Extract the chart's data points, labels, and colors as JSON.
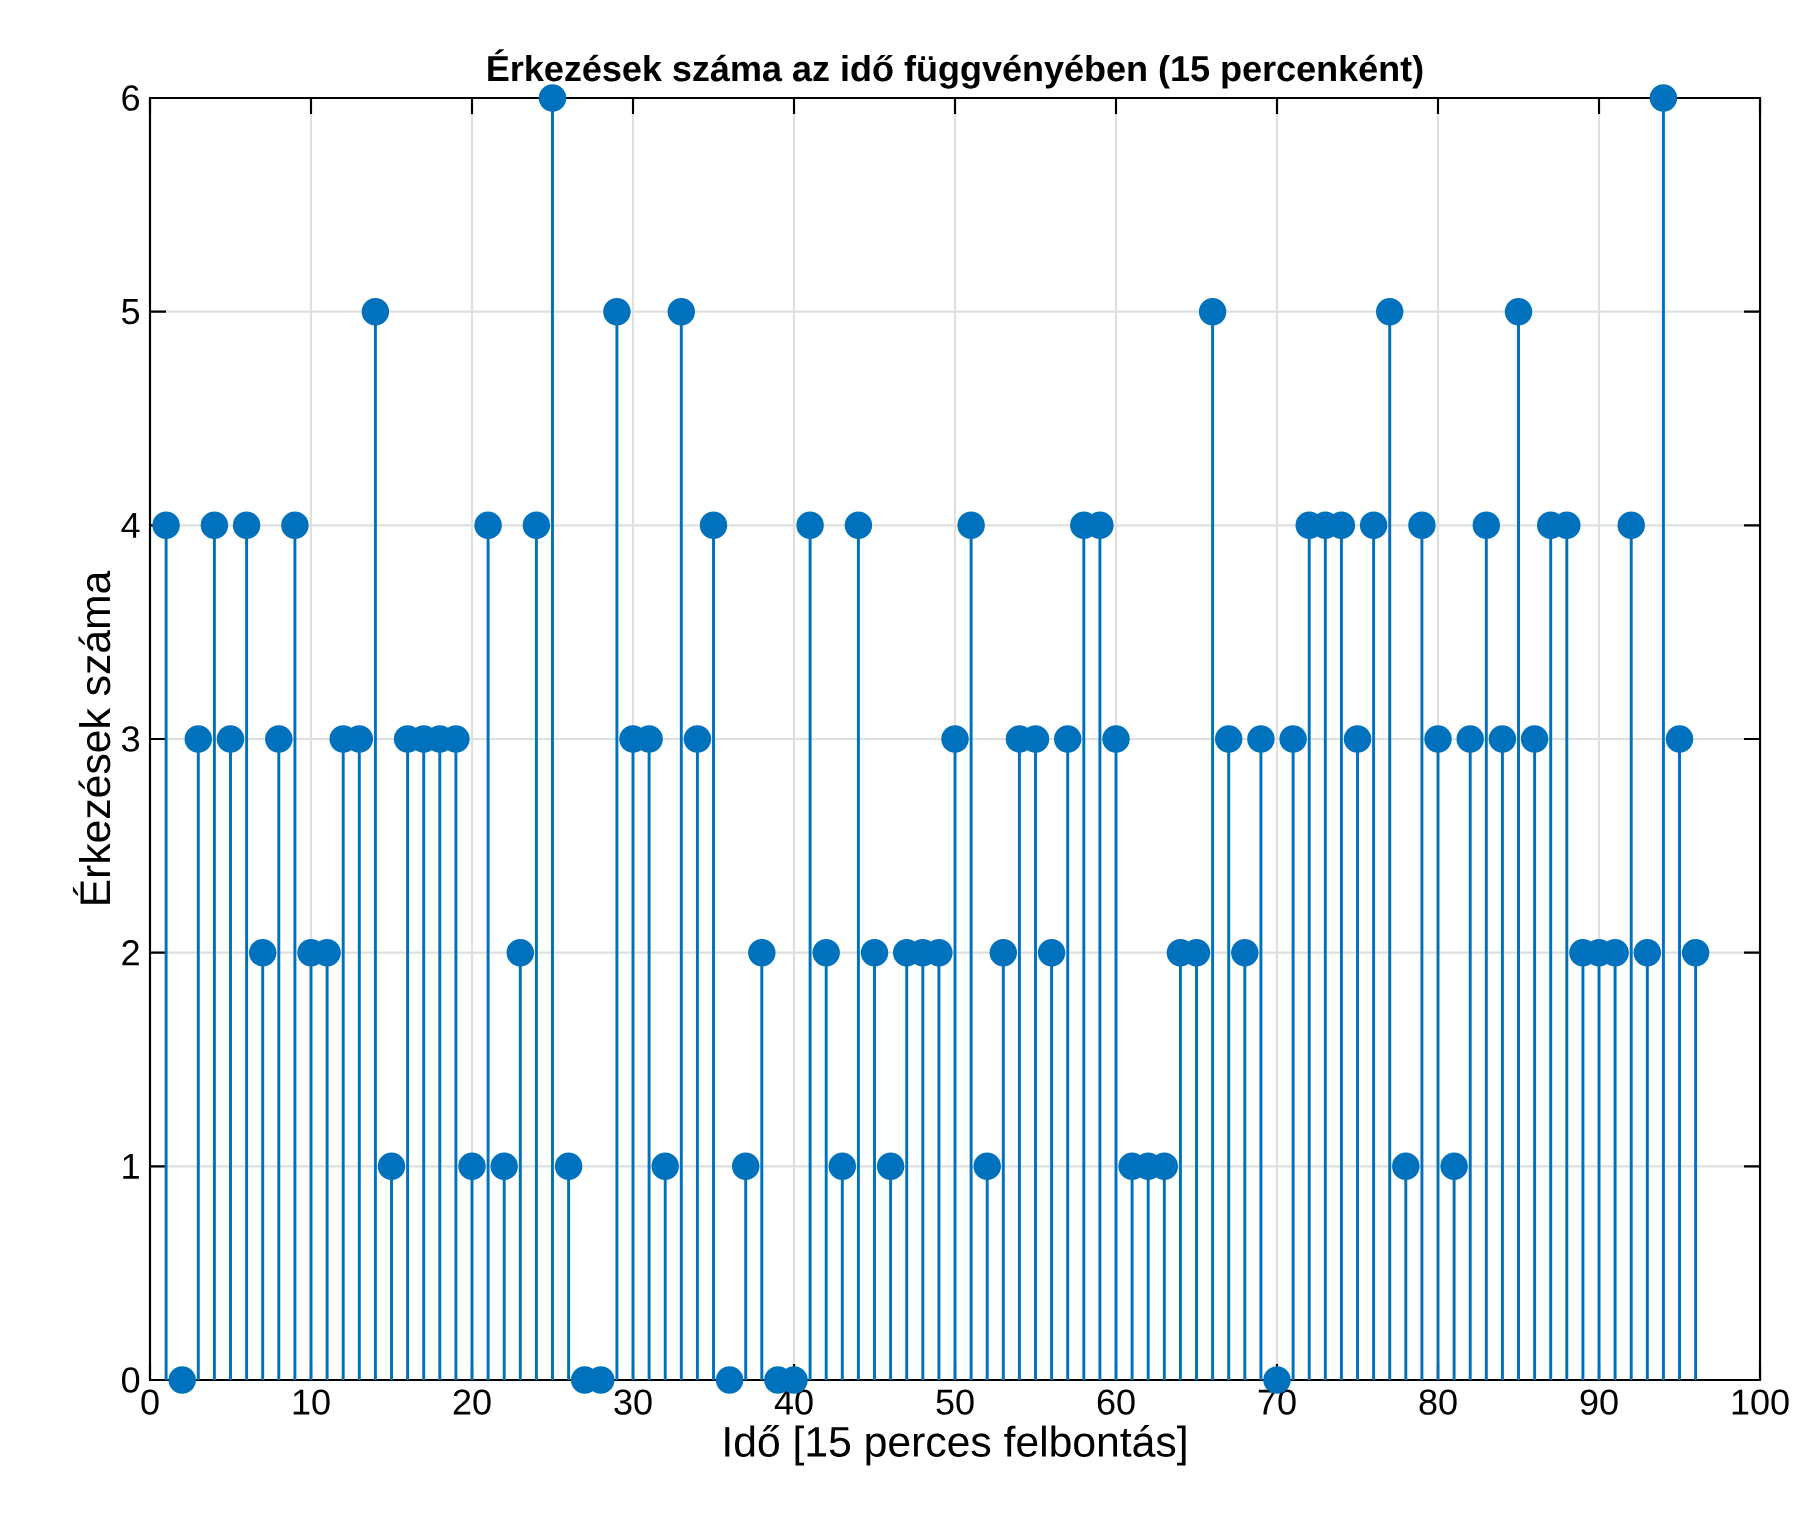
{
  "chart_data": {
    "type": "lollipop",
    "title": "Érkezések száma az idő függvényében (15 percenként)",
    "xlabel": "Idő [15 perces felbontás]",
    "ylabel": "Érkezések száma",
    "x": [
      1,
      2,
      3,
      4,
      5,
      6,
      7,
      8,
      9,
      10,
      11,
      12,
      13,
      14,
      15,
      16,
      17,
      18,
      19,
      20,
      21,
      22,
      23,
      24,
      25,
      26,
      27,
      28,
      29,
      30,
      31,
      32,
      33,
      34,
      35,
      36,
      37,
      38,
      39,
      40,
      41,
      42,
      43,
      44,
      45,
      46,
      47,
      48,
      49,
      50,
      51,
      52,
      53,
      54,
      55,
      56,
      57,
      58,
      59,
      60,
      61,
      62,
      63,
      64,
      65,
      66,
      67,
      68,
      69,
      70,
      71,
      72,
      73,
      74,
      75,
      76,
      77,
      78,
      79,
      80,
      81,
      82,
      83,
      84,
      85,
      86,
      87,
      88,
      89,
      90,
      91,
      92,
      93,
      94,
      95,
      96
    ],
    "values": [
      4,
      0,
      3,
      4,
      3,
      4,
      2,
      3,
      4,
      2,
      2,
      3,
      3,
      5,
      1,
      3,
      3,
      3,
      3,
      1,
      4,
      1,
      2,
      4,
      6,
      1,
      0,
      0,
      5,
      3,
      3,
      1,
      5,
      3,
      4,
      0,
      1,
      2,
      0,
      0,
      4,
      2,
      1,
      4,
      2,
      1,
      2,
      2,
      2,
      3,
      4,
      1,
      2,
      3,
      3,
      2,
      3,
      4,
      4,
      3,
      1,
      1,
      1,
      2,
      2,
      5,
      3,
      2,
      3,
      0,
      3,
      4,
      4,
      4,
      3,
      4,
      5,
      1,
      4,
      3,
      1,
      3,
      4,
      3,
      5,
      3,
      4,
      4,
      2,
      2,
      2,
      4,
      2,
      6,
      3,
      2
    ],
    "color": "#0072bd",
    "marker": "circle",
    "xlim": [
      0,
      100
    ],
    "xticks": [
      0,
      10,
      20,
      30,
      40,
      50,
      60,
      70,
      80,
      90,
      100
    ],
    "ylim": [
      0,
      6
    ],
    "yticks": [
      0,
      1,
      2,
      3,
      4,
      5,
      6
    ],
    "grid": true
  }
}
